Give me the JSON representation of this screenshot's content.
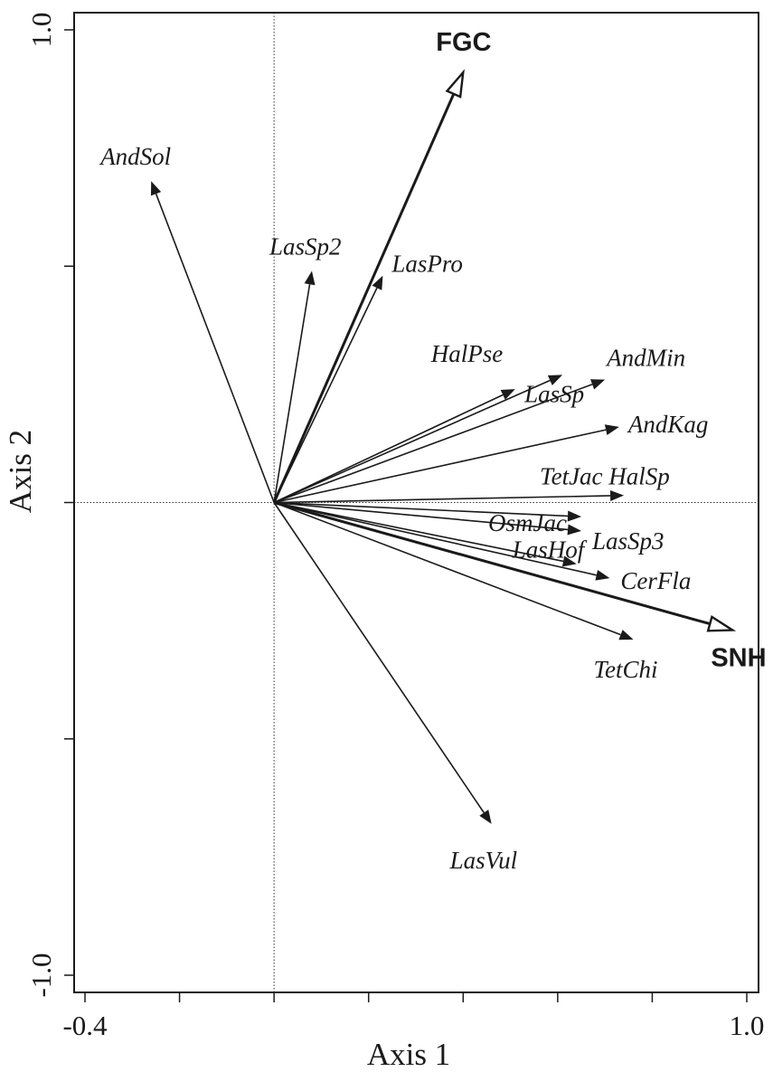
{
  "chart_data": {
    "type": "scatter",
    "subtype": "ordination biplot (vectors)",
    "title": "",
    "xlabel": "Axis 1",
    "ylabel": "Axis 2",
    "xlim": [
      -0.4,
      1.0
    ],
    "ylim": [
      -1.0,
      1.0
    ],
    "x_tick_labels": [
      "-0.4",
      "1.0"
    ],
    "y_tick_labels": [
      "1.0",
      "-1.0"
    ],
    "x_ticks": [
      -0.4,
      -0.2,
      0.0,
      0.2,
      0.4,
      0.6,
      0.8,
      1.0
    ],
    "y_ticks": [
      -1.0,
      -0.5,
      0.0,
      0.5,
      1.0
    ],
    "reference_lines": {
      "x": 0,
      "y": 0,
      "style": "dotted"
    },
    "species_vectors": [
      {
        "label": "AndSol",
        "x": -0.26,
        "y": 0.68
      },
      {
        "label": "LasSp2",
        "x": 0.08,
        "y": 0.49
      },
      {
        "label": "LasPro",
        "x": 0.23,
        "y": 0.48
      },
      {
        "label": "HalPse",
        "x": 0.51,
        "y": 0.24
      },
      {
        "label": "LasSp",
        "x": 0.61,
        "y": 0.27
      },
      {
        "label": "AndMin",
        "x": 0.7,
        "y": 0.26
      },
      {
        "label": "AndKag",
        "x": 0.73,
        "y": 0.16
      },
      {
        "label": "TetJac HalSp",
        "x": 0.74,
        "y": 0.015
      },
      {
        "label": "OsmJac",
        "x": 0.65,
        "y": -0.03
      },
      {
        "label": "LasSp3",
        "x": 0.65,
        "y": -0.06
      },
      {
        "label": "LasHof",
        "x": 0.64,
        "y": -0.13
      },
      {
        "label": "CerFla",
        "x": 0.71,
        "y": -0.16
      },
      {
        "label": "TetChi",
        "x": 0.76,
        "y": -0.29
      },
      {
        "label": "LasVul",
        "x": 0.46,
        "y": -0.68
      }
    ],
    "environmental_vectors": [
      {
        "label": "FGC",
        "x": 0.4,
        "y": 0.91
      },
      {
        "label": "SNH",
        "x": 0.97,
        "y": -0.27
      }
    ]
  }
}
